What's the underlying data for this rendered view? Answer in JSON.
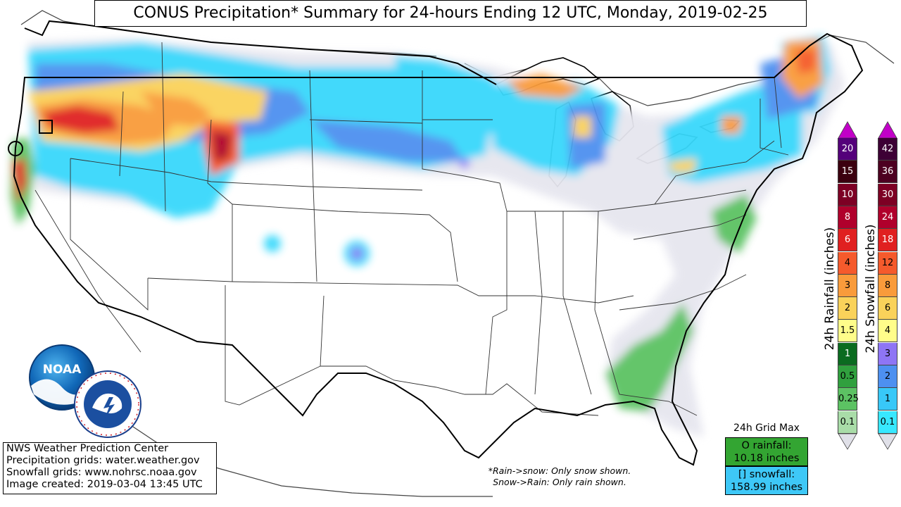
{
  "title": "CONUS Precipitation* Summary for 24-hours Ending 12 UTC, Monday, 2019-02-25",
  "credits": {
    "line1": "NWS Weather Prediction Center",
    "line2": "Precipitation grids: water.weather.gov",
    "line3": "Snowfall grids: www.nohrsc.noaa.gov",
    "line4": "Image created: 2019-03-04 13:45 UTC"
  },
  "note": {
    "line1": "*Rain->snow: Only snow shown.",
    "line2": "Snow->Rain: Only rain shown."
  },
  "grid_max": {
    "title": "24h Grid Max",
    "rain_label": "O rainfall:",
    "rain_value": "10.18 inches",
    "snow_label": "[] snowfall:",
    "snow_value": "158.99 inches"
  },
  "logos": {
    "noaa_text": "NOAA",
    "nws_text": "NATIONAL WEATHER SERVICE"
  },
  "rain_scale": {
    "label": "24h Rainfall (inches)",
    "levels": [
      {
        "v": "20",
        "color": "#54007a"
      },
      {
        "v": "15",
        "color": "#3b000f"
      },
      {
        "v": "10",
        "color": "#7d0024"
      },
      {
        "v": "8",
        "color": "#b0002c"
      },
      {
        "v": "6",
        "color": "#e02020"
      },
      {
        "v": "4",
        "color": "#f55a2c"
      },
      {
        "v": "3",
        "color": "#f99b3b"
      },
      {
        "v": "2",
        "color": "#fad25a"
      },
      {
        "v": "1.5",
        "color": "#fffd8a"
      },
      {
        "v": "1",
        "color": "#0b6b20"
      },
      {
        "v": "0.5",
        "color": "#30a03e"
      },
      {
        "v": "0.25",
        "color": "#5cc263"
      },
      {
        "v": "0.1",
        "color": "#a9dca8"
      }
    ],
    "top_color": "#c200c8",
    "bottom_color": "#e0e0e8"
  },
  "snow_scale": {
    "label": "24h Snowfall (inches)",
    "levels": [
      {
        "v": "42",
        "color": "#3d0035"
      },
      {
        "v": "36",
        "color": "#4d0020"
      },
      {
        "v": "30",
        "color": "#7d0024"
      },
      {
        "v": "24",
        "color": "#b0002c"
      },
      {
        "v": "18",
        "color": "#e02020"
      },
      {
        "v": "12",
        "color": "#f55a2c"
      },
      {
        "v": "8",
        "color": "#f99b3b"
      },
      {
        "v": "6",
        "color": "#fad25a"
      },
      {
        "v": "4",
        "color": "#fffd8a"
      },
      {
        "v": "3",
        "color": "#8e75f5"
      },
      {
        "v": "2",
        "color": "#4d90f0"
      },
      {
        "v": "1",
        "color": "#38c8f8"
      },
      {
        "v": "0.1",
        "color": "#38e8ff"
      }
    ],
    "top_color": "#c200c8",
    "bottom_color": "#e0e0e8"
  }
}
